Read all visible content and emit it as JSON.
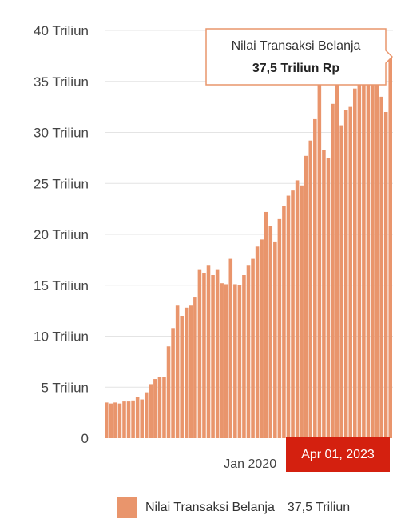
{
  "chart_data": {
    "type": "bar",
    "y_unit_suffix": "Triliun",
    "y_ticks": [
      {
        "value": 0,
        "label": "0"
      },
      {
        "value": 5,
        "label": "5 Triliun"
      },
      {
        "value": 10,
        "label": "10 Triliun"
      },
      {
        "value": 15,
        "label": "15 Triliun"
      },
      {
        "value": 20,
        "label": "20 Triliun"
      },
      {
        "value": 25,
        "label": "25 Triliun"
      },
      {
        "value": 30,
        "label": "30 Triliun"
      },
      {
        "value": 35,
        "label": "35 Triliun"
      },
      {
        "value": 40,
        "label": "40 Triliun"
      }
    ],
    "ylim": [
      0,
      40
    ],
    "x_tick_label": "Jan 2020",
    "x_tick_index": 18,
    "grid": true,
    "series": [
      {
        "name": "Nilai Transaksi Belanja",
        "color": "#E9956C",
        "values": [
          3.5,
          3.4,
          3.5,
          3.4,
          3.6,
          3.6,
          3.7,
          4.0,
          3.8,
          4.5,
          5.3,
          5.8,
          6.0,
          6.0,
          9.0,
          10.8,
          13.0,
          12.0,
          12.8,
          13.0,
          13.8,
          16.5,
          16.2,
          17.0,
          16.0,
          16.5,
          15.2,
          15.1,
          17.6,
          15.1,
          15.0,
          16.0,
          17.0,
          17.6,
          18.8,
          19.5,
          22.2,
          20.8,
          19.3,
          21.5,
          22.8,
          23.8,
          24.3,
          25.3,
          24.8,
          27.7,
          29.2,
          31.3,
          35.0,
          28.3,
          27.5,
          32.8,
          35.7,
          30.7,
          32.2,
          32.5,
          34.3,
          37.5,
          37.0,
          37.3,
          36.5,
          37.3,
          33.5,
          32.0,
          37.5
        ]
      }
    ],
    "tooltip": {
      "title": "Nilai Transaksi Belanja",
      "value": "37,5 Triliun Rp"
    },
    "crosshair_label": "Apr 01, 2023",
    "legend": {
      "label": "Nilai Transaksi Belanja",
      "value": "37,5 Triliun",
      "placement": "bottom"
    }
  }
}
